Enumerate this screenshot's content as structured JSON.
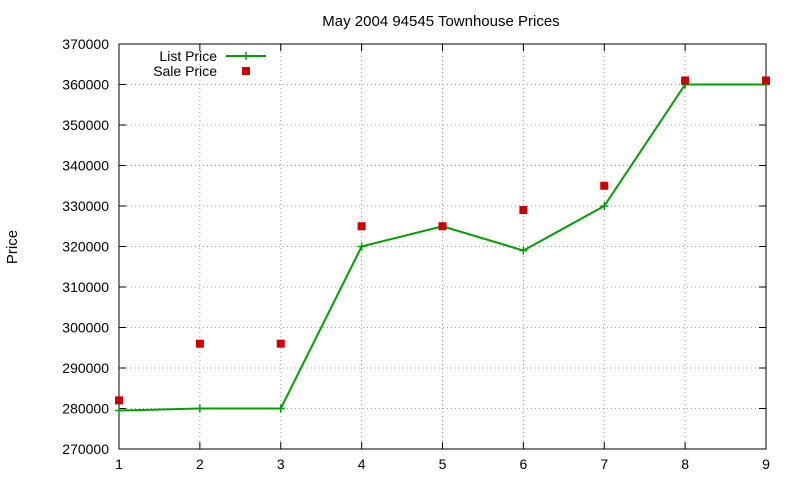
{
  "chart_data": {
    "type": "line",
    "title": "May 2004 94545 Townhouse Prices",
    "xlabel": "",
    "ylabel": "Price",
    "x": [
      1,
      2,
      3,
      4,
      5,
      6,
      7,
      8,
      9
    ],
    "xlim": [
      1,
      9
    ],
    "ylim": [
      270000,
      370000
    ],
    "y_ticks": [
      "270000",
      "280000",
      "290000",
      "300000",
      "310000",
      "320000",
      "330000",
      "340000",
      "350000",
      "360000",
      "370000"
    ],
    "x_ticks": [
      "1",
      "2",
      "3",
      "4",
      "5",
      "6",
      "7",
      "8",
      "9"
    ],
    "grid": true,
    "legend_position": "top-left",
    "series": [
      {
        "name": "List Price",
        "style": "lines+crosses",
        "color": "#00a000",
        "values": [
          279500,
          280000,
          280000,
          320000,
          325000,
          319000,
          330000,
          360000,
          360000
        ]
      },
      {
        "name": "Sale Price",
        "style": "squares",
        "color": "#cc0000",
        "values": [
          282000,
          296000,
          296000,
          325000,
          325000,
          329000,
          335000,
          361000,
          361000
        ]
      }
    ]
  }
}
